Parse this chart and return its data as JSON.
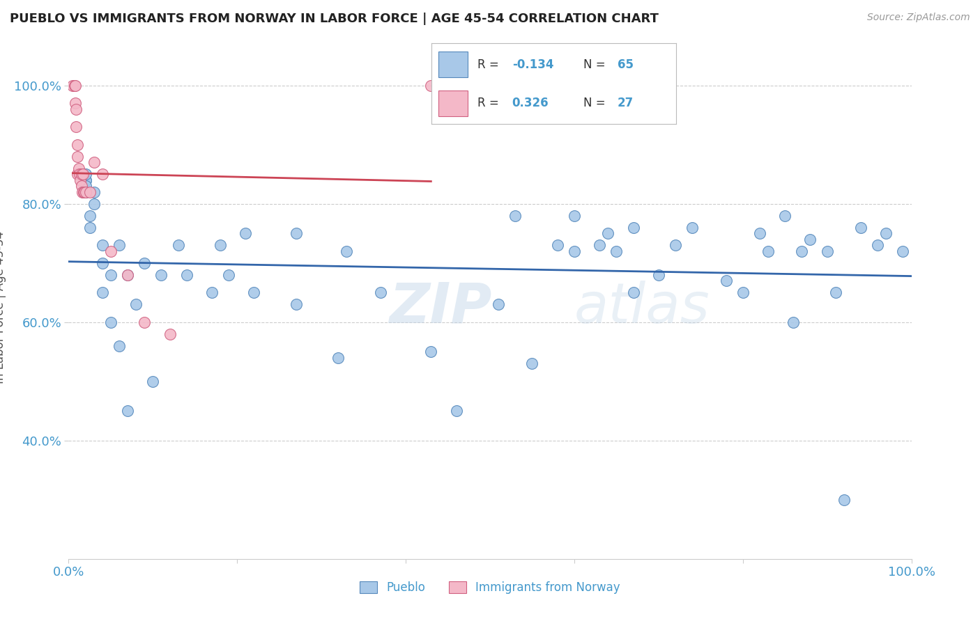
{
  "title": "PUEBLO VS IMMIGRANTS FROM NORWAY IN LABOR FORCE | AGE 45-54 CORRELATION CHART",
  "source": "Source: ZipAtlas.com",
  "ylabel": "In Labor Force | Age 45-54",
  "xlim": [
    0.0,
    1.0
  ],
  "ylim": [
    0.2,
    1.05
  ],
  "yticks": [
    0.4,
    0.6,
    0.8,
    1.0
  ],
  "ytick_labels": [
    "40.0%",
    "60.0%",
    "80.0%",
    "100.0%"
  ],
  "watermark_zip": "ZIP",
  "watermark_atlas": "atlas",
  "legend_R_blue": "-0.134",
  "legend_N_blue": "65",
  "legend_R_pink": "0.326",
  "legend_N_pink": "27",
  "blue_color": "#a8c8e8",
  "pink_color": "#f4b8c8",
  "blue_edge_color": "#5588bb",
  "pink_edge_color": "#d06080",
  "blue_line_color": "#3366aa",
  "pink_line_color": "#cc4455",
  "title_color": "#222222",
  "axis_label_color": "#4499cc",
  "grid_color": "#cccccc",
  "pueblo_x": [
    0.02,
    0.02,
    0.02,
    0.02,
    0.02,
    0.025,
    0.025,
    0.03,
    0.03,
    0.04,
    0.04,
    0.04,
    0.05,
    0.05,
    0.06,
    0.06,
    0.07,
    0.07,
    0.08,
    0.09,
    0.1,
    0.11,
    0.13,
    0.14,
    0.17,
    0.18,
    0.19,
    0.21,
    0.22,
    0.27,
    0.27,
    0.32,
    0.33,
    0.37,
    0.43,
    0.46,
    0.51,
    0.53,
    0.55,
    0.58,
    0.6,
    0.6,
    0.63,
    0.64,
    0.65,
    0.67,
    0.67,
    0.7,
    0.72,
    0.74,
    0.78,
    0.8,
    0.82,
    0.83,
    0.85,
    0.86,
    0.87,
    0.88,
    0.9,
    0.91,
    0.92,
    0.94,
    0.96,
    0.97,
    0.99
  ],
  "pueblo_y": [
    0.84,
    0.84,
    0.82,
    0.83,
    0.85,
    0.76,
    0.78,
    0.8,
    0.82,
    0.7,
    0.73,
    0.65,
    0.68,
    0.6,
    0.73,
    0.56,
    0.68,
    0.45,
    0.63,
    0.7,
    0.5,
    0.68,
    0.73,
    0.68,
    0.65,
    0.73,
    0.68,
    0.75,
    0.65,
    0.63,
    0.75,
    0.54,
    0.72,
    0.65,
    0.55,
    0.45,
    0.63,
    0.78,
    0.53,
    0.73,
    0.72,
    0.78,
    0.73,
    0.75,
    0.72,
    0.76,
    0.65,
    0.68,
    0.73,
    0.76,
    0.67,
    0.65,
    0.75,
    0.72,
    0.78,
    0.6,
    0.72,
    0.74,
    0.72,
    0.65,
    0.3,
    0.76,
    0.73,
    0.75,
    0.72
  ],
  "norway_x": [
    0.005,
    0.007,
    0.008,
    0.008,
    0.009,
    0.009,
    0.01,
    0.01,
    0.01,
    0.012,
    0.013,
    0.014,
    0.015,
    0.015,
    0.016,
    0.017,
    0.018,
    0.019,
    0.02,
    0.025,
    0.03,
    0.04,
    0.05,
    0.07,
    0.09,
    0.12,
    0.43
  ],
  "norway_y": [
    1.0,
    1.0,
    1.0,
    0.97,
    0.96,
    0.93,
    0.9,
    0.88,
    0.85,
    0.86,
    0.85,
    0.84,
    0.85,
    0.83,
    0.82,
    0.85,
    0.82,
    0.82,
    0.82,
    0.82,
    0.87,
    0.85,
    0.72,
    0.68,
    0.6,
    0.58,
    1.0
  ]
}
